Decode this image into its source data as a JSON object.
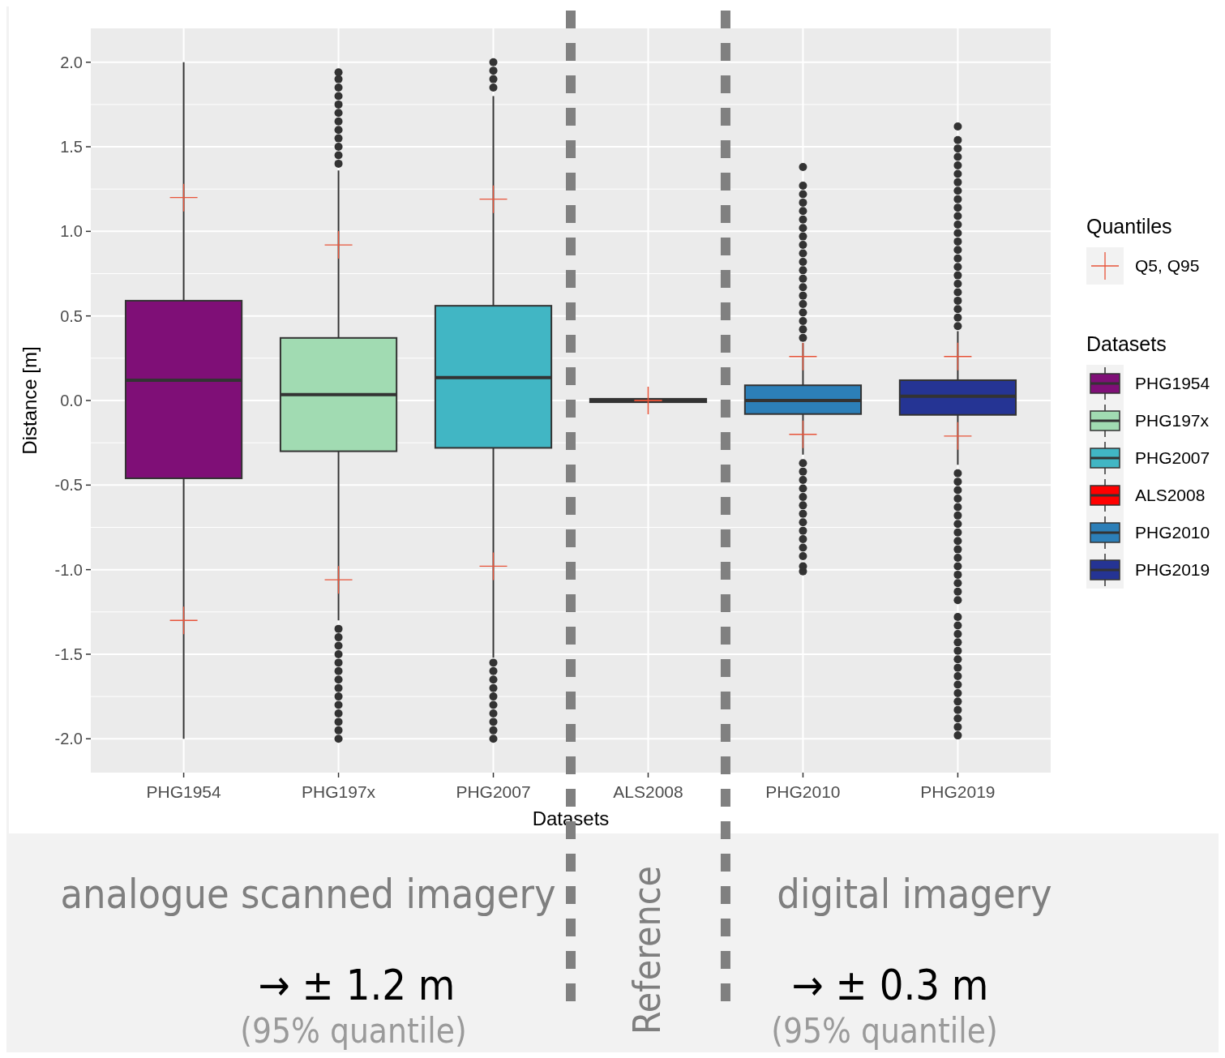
{
  "chart_data": {
    "type": "box",
    "xlabel": "Datasets",
    "ylabel": "Distance [m]",
    "legend_title": "Datasets",
    "legend": "right",
    "grid": true,
    "categories": [
      "PHG1954",
      "PHG197x",
      "PHG2007",
      "ALS2008",
      "PHG2010",
      "PHG2019"
    ],
    "ylim": [
      -2.2,
      2.2
    ],
    "yticks": [
      {
        "value": -2,
        "label": "-2.0"
      },
      -1.5,
      {
        "value": -1,
        "label": "-1.0"
      },
      -0.5,
      {
        "value": 0,
        "label": "0.0"
      },
      0.5,
      {
        "value": 1,
        "label": "1.0"
      },
      1.5,
      {
        "value": 2,
        "label": "2.0"
      }
    ],
    "series": [
      {
        "name": "PHG1954",
        "color": "#7f0f77",
        "boxes": [
          {
            "low": -2.0,
            "q1": -0.46,
            "median": 0.12,
            "q3": 0.59,
            "high": 2.0
          },
          null,
          null,
          null,
          null,
          null
        ]
      },
      {
        "name": "PHG197x",
        "color": "#a1dbb2",
        "boxes": [
          null,
          {
            "low": -1.3,
            "q1": -0.3,
            "median": 0.035,
            "q3": 0.37,
            "high": 1.36,
            "outliers": [
              -2.0,
              -1.95,
              -1.9,
              -1.85,
              -1.8,
              -1.75,
              -1.7,
              -1.65,
              -1.6,
              -1.55,
              -1.5,
              -1.45,
              -1.4,
              -1.35,
              1.4,
              1.45,
              1.5,
              1.55,
              1.6,
              1.65,
              1.7,
              1.75,
              1.8,
              1.85,
              1.9,
              1.94
            ]
          },
          null,
          null,
          null,
          null
        ]
      },
      {
        "name": "PHG2007",
        "color": "#41b6c4",
        "boxes": [
          null,
          null,
          {
            "low": -1.52,
            "q1": -0.28,
            "median": 0.135,
            "q3": 0.56,
            "high": 1.8,
            "outliers": [
              -2.0,
              -1.95,
              -1.9,
              -1.85,
              -1.8,
              -1.75,
              -1.7,
              -1.65,
              -1.6,
              -1.55,
              1.85,
              1.9,
              1.95,
              2.0
            ]
          },
          null,
          null,
          null
        ]
      },
      {
        "name": "ALS2008",
        "color": "#ff0000",
        "boxes": [
          null,
          null,
          null,
          {
            "low": -0.01,
            "q1": -0.01,
            "median": 0.0,
            "q3": 0.01,
            "high": 0.01
          },
          null,
          null
        ]
      },
      {
        "name": "PHG2010",
        "color": "#2c7fb8",
        "boxes": [
          null,
          null,
          null,
          null,
          {
            "low": -0.32,
            "q1": -0.08,
            "median": 0.0,
            "q3": 0.09,
            "high": 0.34,
            "outliers": [
              -1.01,
              -0.98,
              -0.92,
              -0.87,
              -0.82,
              -0.77,
              -0.72,
              -0.67,
              -0.62,
              -0.57,
              -0.52,
              -0.47,
              -0.42,
              -0.37,
              0.37,
              0.42,
              0.47,
              0.52,
              0.57,
              0.62,
              0.67,
              0.72,
              0.77,
              0.82,
              0.87,
              0.92,
              0.97,
              1.02,
              1.07,
              1.12,
              1.17,
              1.22,
              1.27,
              1.38
            ]
          },
          null
        ]
      },
      {
        "name": "PHG2019",
        "color": "#253494",
        "boxes": [
          null,
          null,
          null,
          null,
          null,
          {
            "low": -0.38,
            "q1": -0.085,
            "median": 0.025,
            "q3": 0.12,
            "high": 0.41,
            "outliers": [
              -1.98,
              -1.93,
              -1.88,
              -1.83,
              -1.78,
              -1.73,
              -1.68,
              -1.63,
              -1.58,
              -1.53,
              -1.48,
              -1.43,
              -1.38,
              -1.33,
              -1.28,
              -1.18,
              -1.13,
              -1.08,
              -1.03,
              -0.98,
              -0.93,
              -0.88,
              -0.83,
              -0.78,
              -0.73,
              -0.68,
              -0.63,
              -0.58,
              -0.53,
              -0.48,
              -0.43,
              0.44,
              0.49,
              0.54,
              0.59,
              0.64,
              0.69,
              0.74,
              0.79,
              0.84,
              0.89,
              0.94,
              0.99,
              1.04,
              1.09,
              1.14,
              1.19,
              1.24,
              1.29,
              1.34,
              1.39,
              1.44,
              1.49,
              1.54,
              1.62
            ]
          }
        ]
      },
      {
        "type": "scatter",
        "name": "Q5, Q95",
        "color": "#e8543a",
        "marker": "cross",
        "x": [
          "PHG1954",
          "PHG1954",
          "PHG197x",
          "PHG197x",
          "PHG2007",
          "PHG2007",
          "ALS2008",
          "ALS2008",
          "PHG2010",
          "PHG2010",
          "PHG2019",
          "PHG2019"
        ],
        "values": [
          -1.3,
          1.2,
          -1.06,
          0.92,
          -0.98,
          1.19,
          0.0,
          0.0,
          -0.2,
          0.26,
          -0.21,
          0.26
        ]
      }
    ],
    "annotations": [
      "Quantiles",
      "analogue scanned imagery",
      "→ ± 1.2 m",
      "(95% quantile)",
      "Reference",
      "digital imagery",
      "→ ± 0.3 m",
      "(95% quantile)"
    ]
  }
}
